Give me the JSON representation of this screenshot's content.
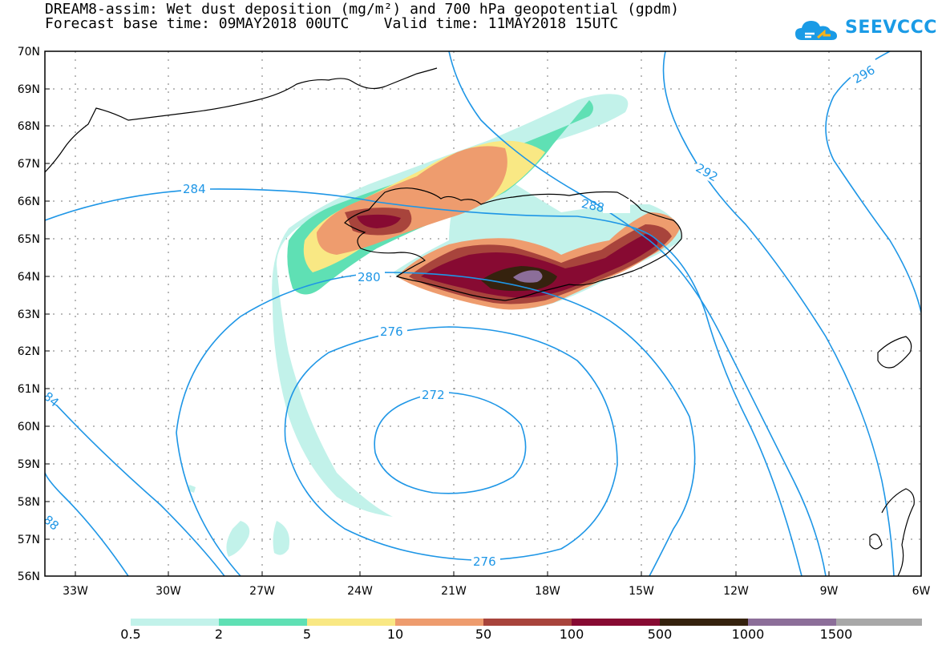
{
  "title": {
    "line1": "DREAM8-assim: Wet dust deposition (mg/m²) and 700 hPa geopotential (gpdm)",
    "line2": "Forecast base time: 09MAY2018 00UTC    Valid time: 11MAY2018 15UTC"
  },
  "logo": {
    "text": "SEEVCCC",
    "icon": "cloud-icon"
  },
  "axes": {
    "lat_labels": [
      "70N",
      "69N",
      "68N",
      "67N",
      "66N",
      "65N",
      "64N",
      "63N",
      "62N",
      "61N",
      "60N",
      "59N",
      "58N",
      "57N",
      "56N"
    ],
    "lon_labels": [
      "33W",
      "30W",
      "27W",
      "24W",
      "21W",
      "18W",
      "15W",
      "12W",
      "9W",
      "6W"
    ]
  },
  "contour_labels": [
    "296",
    "292",
    "288",
    "284",
    "280",
    "276",
    "272",
    "276",
    "84",
    "88"
  ],
  "colorbar": {
    "labels": [
      "0.5",
      "2",
      "5",
      "10",
      "50",
      "100",
      "500",
      "1000",
      "1500"
    ],
    "colors": [
      "#c2f2ea",
      "#5fe0b4",
      "#f9e884",
      "#ee9c6e",
      "#a8443c",
      "#870a32",
      "#35220e",
      "#8c6e99",
      "#a8a8a8"
    ]
  },
  "colors": {
    "contour": "#1e96e6",
    "land": "#ffffff",
    "coast": "#000000"
  }
}
